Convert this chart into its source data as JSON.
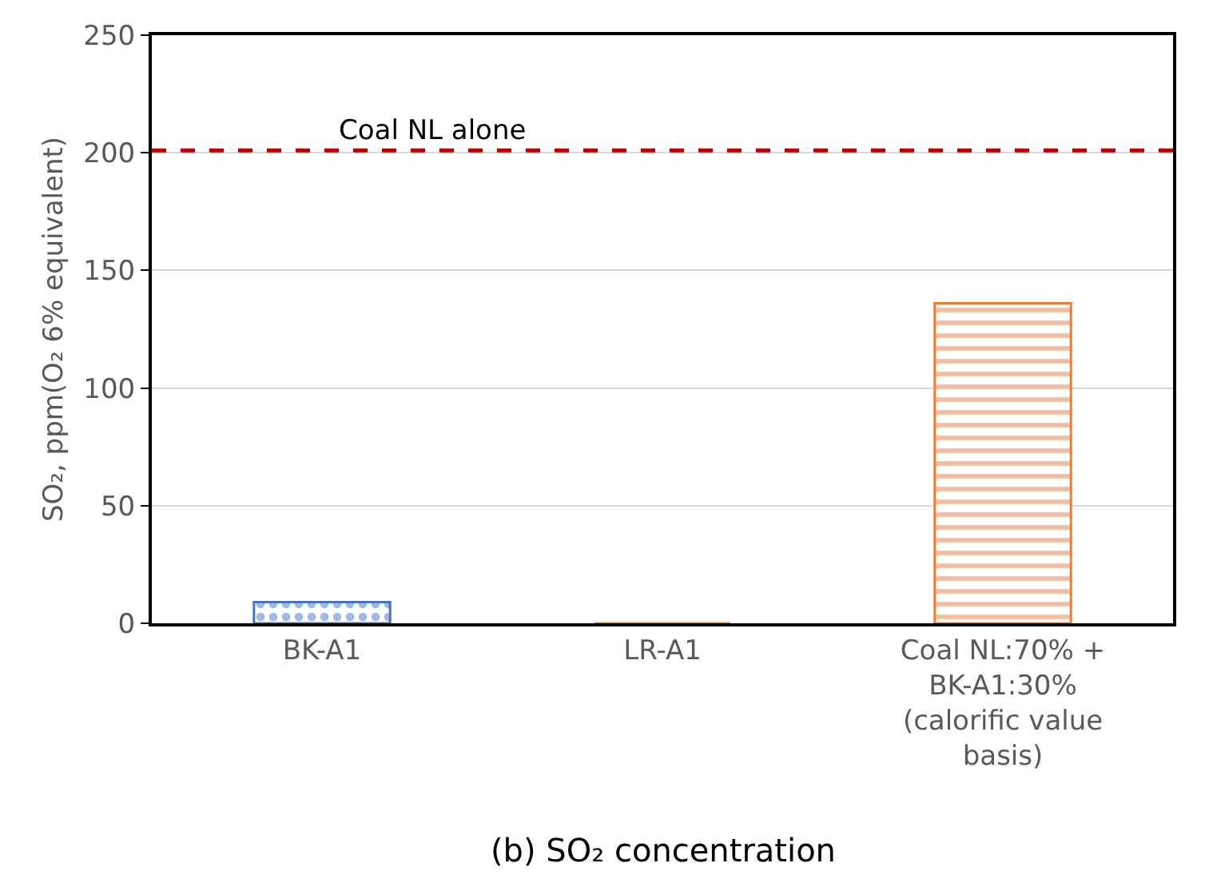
{
  "chart_data": {
    "type": "bar",
    "title": "(b) SO₂ concentration",
    "ylabel": "SO₂, ppm(O₂ 6% equivalent)",
    "categories": [
      "BK-A1",
      "LR-A1",
      "Coal NL:70% + BK-A1:30% (calorific value basis)"
    ],
    "values": [
      9,
      0,
      136
    ],
    "colors": [
      "#4472c4",
      "#ed7d31",
      "#ed7d31"
    ],
    "ylim": [
      0,
      250
    ],
    "yticks": [
      0,
      50,
      100,
      150,
      200,
      250
    ],
    "grid": "y",
    "ref_lines": [
      {
        "axis": "y",
        "value": 201,
        "label": "Coal NL alone",
        "color": "#c00000",
        "line_style": "dashed"
      }
    ]
  }
}
